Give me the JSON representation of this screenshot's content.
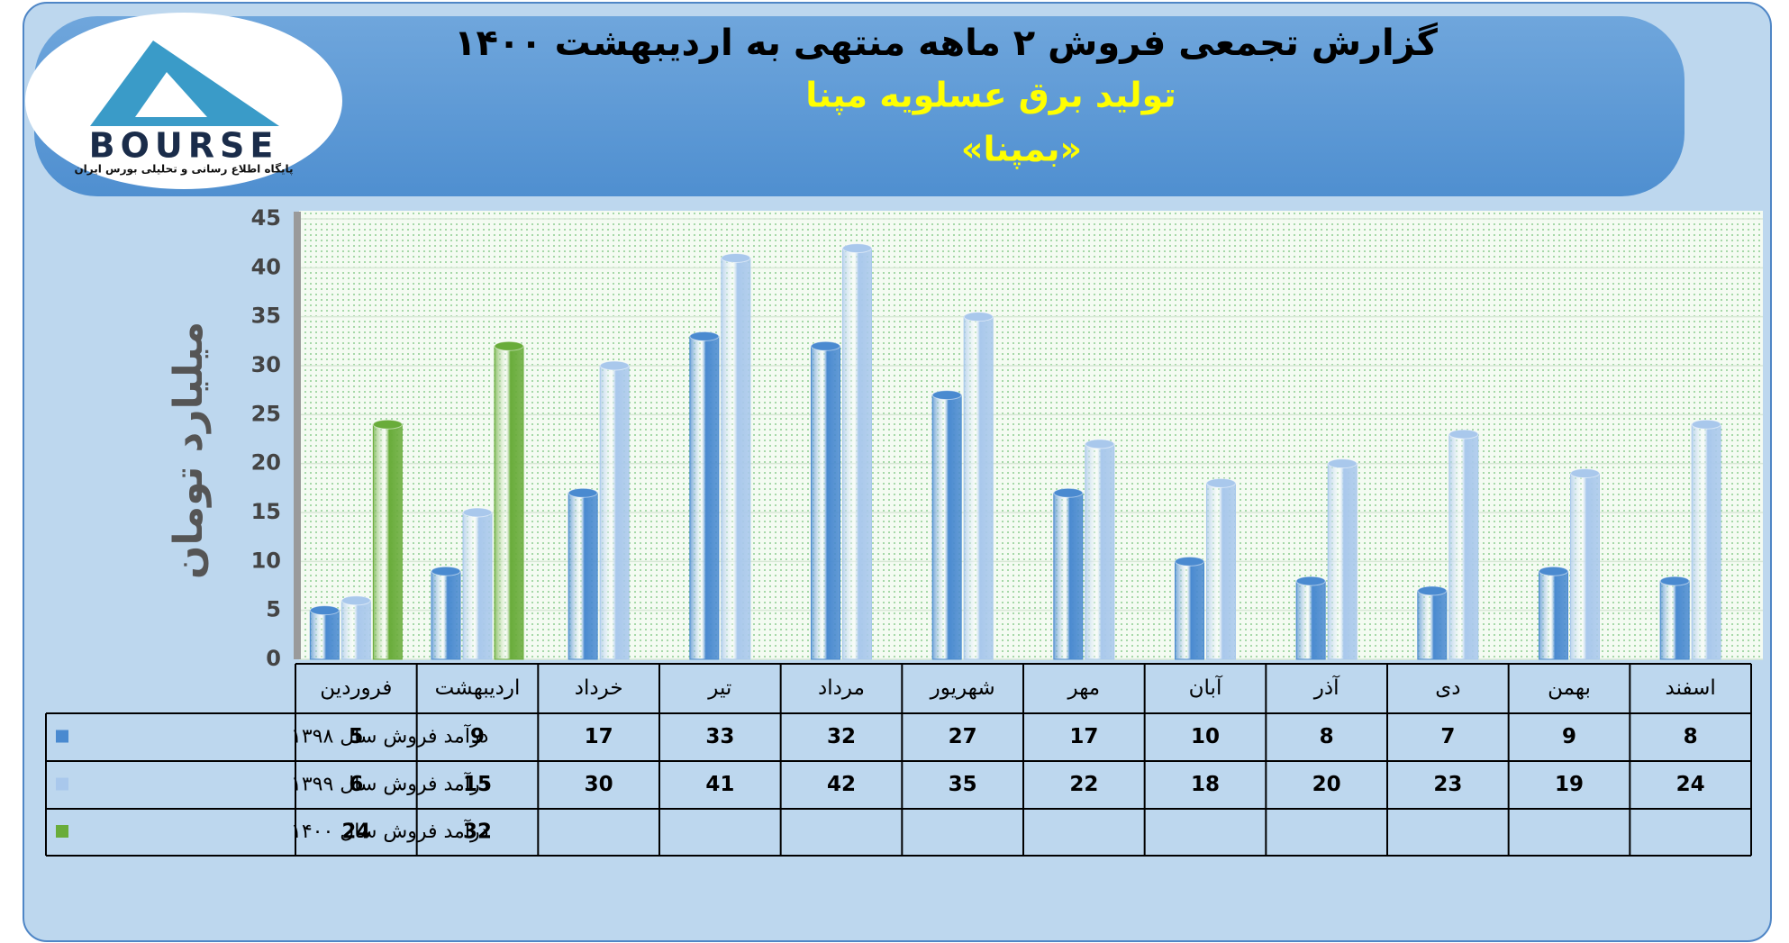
{
  "logo": {
    "name": "BOURSE",
    "tagline": "پایگاه اطلاع رسانی و تحلیلی بورس ایران"
  },
  "chart_data": {
    "type": "bar",
    "title": "گزارش تجمعی فروش ۲ ماهه منتهی به اردیبهشت ۱۴۰۰",
    "subtitle": "تولید برق عسلویه مپنا",
    "symbol": "«بمپنا»",
    "y_label": "میلیارد تومان",
    "categories": [
      "فروردین",
      "اردیبهشت",
      "خرداد",
      "تیر",
      "مرداد",
      "شهریور",
      "مهر",
      "آبان",
      "آذر",
      "دی",
      "بهمن",
      "اسفند"
    ],
    "series": [
      {
        "name": "درآمد فروش سال ۱۳۹۸",
        "color": "#4a8ad0",
        "values": [
          5,
          9,
          17,
          33,
          32,
          27,
          17,
          10,
          8,
          7,
          9,
          8
        ]
      },
      {
        "name": "درآمد فروش سال ۱۳۹۹",
        "color": "#a9c8ec",
        "values": [
          6,
          15,
          30,
          41,
          42,
          35,
          22,
          18,
          20,
          23,
          19,
          24
        ]
      },
      {
        "name": "درآمد فروش سال ۱۴۰۰",
        "color": "#69ac3a",
        "values": [
          24,
          32,
          null,
          null,
          null,
          null,
          null,
          null,
          null,
          null,
          null,
          null
        ]
      }
    ],
    "ylim": [
      0,
      45
    ],
    "yticks": [
      0,
      5,
      10,
      15,
      20,
      25,
      30,
      35,
      40,
      45
    ],
    "grid": true
  }
}
